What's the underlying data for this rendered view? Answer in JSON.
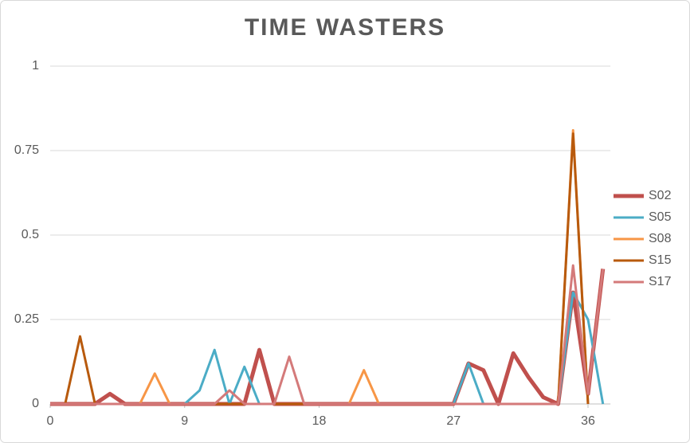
{
  "chart_data": {
    "type": "line",
    "title": "TIME WASTERS",
    "x": [
      0,
      1,
      2,
      3,
      4,
      5,
      6,
      7,
      8,
      9,
      10,
      11,
      12,
      13,
      14,
      15,
      16,
      17,
      18,
      19,
      20,
      21,
      22,
      23,
      24,
      25,
      26,
      27,
      28,
      29,
      30,
      31,
      32,
      33,
      34,
      35,
      36,
      37
    ],
    "xlim": [
      0,
      37.5
    ],
    "xticks": [
      0,
      9,
      18,
      27,
      36
    ],
    "ylim": [
      0,
      1
    ],
    "yticks": [
      0,
      0.25,
      0.5,
      0.75,
      1
    ],
    "grid": true,
    "legend": "right",
    "series": [
      {
        "name": "S02",
        "color": "#c0504d",
        "width": 5,
        "values": [
          0,
          0,
          0,
          0,
          0.03,
          0,
          0,
          0,
          0,
          0,
          0,
          0,
          0,
          0,
          0.16,
          0,
          0,
          0,
          0,
          0,
          0,
          0,
          0,
          0,
          0,
          0,
          0,
          0,
          0.12,
          0.1,
          0,
          0.15,
          0.08,
          0.02,
          0,
          0.33,
          0.03,
          0.4
        ]
      },
      {
        "name": "S05",
        "color": "#4bacc6",
        "width": 3,
        "values": [
          0,
          0,
          0,
          0,
          0,
          0,
          0,
          0,
          0,
          0,
          0.04,
          0.16,
          0,
          0.11,
          0,
          0,
          0,
          0,
          0,
          0,
          0,
          0,
          0,
          0,
          0,
          0,
          0,
          0,
          0.12,
          0,
          0,
          0,
          0,
          0,
          0,
          0.33,
          0.25,
          0
        ]
      },
      {
        "name": "S08",
        "color": "#f79646",
        "width": 3,
        "values": [
          0,
          0,
          0,
          0,
          0,
          0,
          0,
          0.09,
          0,
          0,
          0,
          0,
          0,
          0,
          0,
          0,
          0,
          0,
          0,
          0,
          0,
          0.1,
          0,
          0,
          0,
          0,
          0,
          0,
          0,
          0,
          0,
          0,
          0,
          0,
          0,
          0.81,
          0,
          null
        ]
      },
      {
        "name": "S15",
        "color": "#b85a0d",
        "width": 3,
        "values": [
          0,
          0,
          0.2,
          0,
          0,
          0,
          0,
          0,
          0,
          0,
          0,
          0,
          0,
          0,
          0,
          0,
          0,
          0,
          0,
          0,
          0,
          0,
          0,
          0,
          0,
          0,
          0,
          0,
          0,
          0,
          0,
          0,
          0,
          0,
          0,
          0.8,
          0,
          null
        ]
      },
      {
        "name": "S17",
        "color": "#d47a7a",
        "width": 3,
        "values": [
          0,
          0,
          0,
          0,
          0,
          0,
          0,
          0,
          0,
          0,
          0,
          0,
          0.04,
          0,
          0,
          0,
          0.14,
          0,
          0,
          0,
          0,
          0,
          0,
          0,
          0,
          0,
          0,
          0,
          0,
          0,
          0,
          0,
          0,
          0,
          0,
          0.41,
          0.03,
          0.4
        ]
      }
    ]
  }
}
